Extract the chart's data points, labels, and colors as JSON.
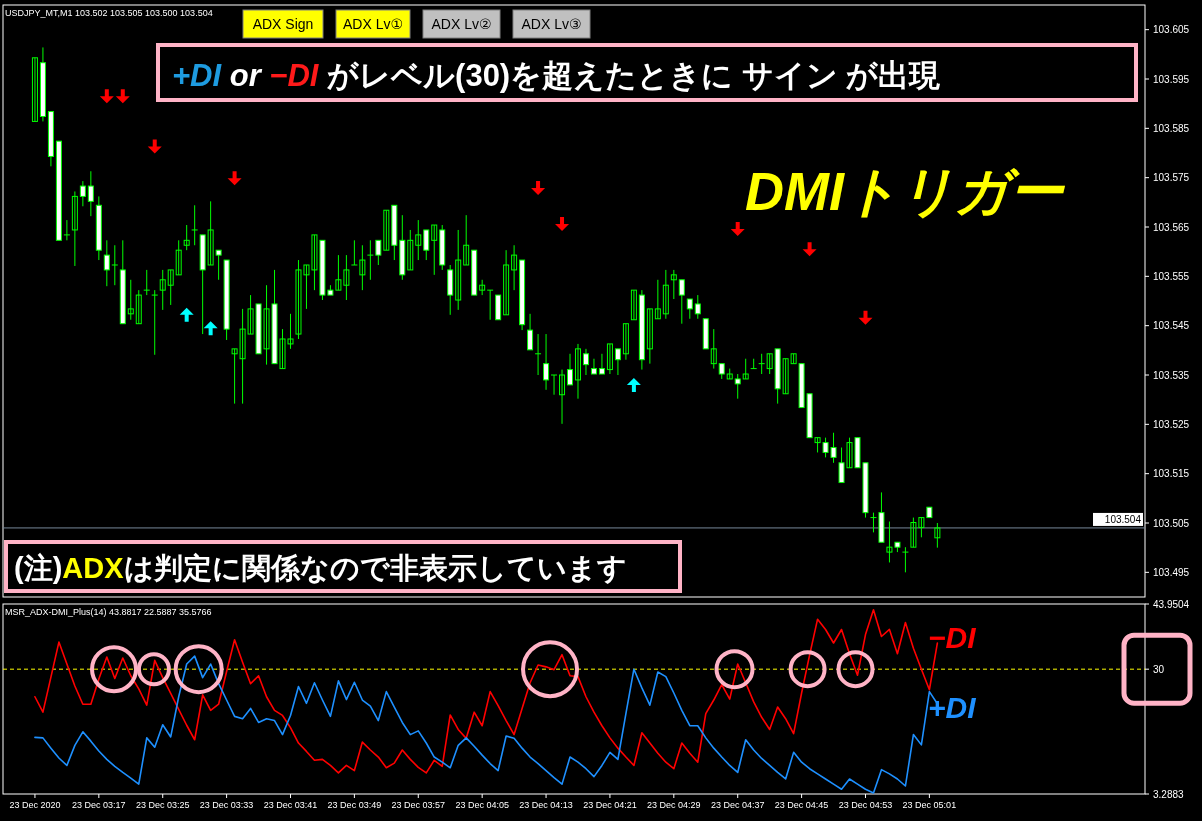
{
  "chart_data": [
    {
      "type": "candlestick",
      "title": "DMIトリガー",
      "subtitle": "USDJPY_MT,M1 103.502 103.505 103.500 103.504",
      "color": "#00ff00",
      "annotations": [
        "ADX Sign",
        "ADX Lv①",
        "ADX Lv②",
        "ADX Lv③",
        "+DI",
        "or",
        "−DI",
        "がレベル(30)を超えたときに サイン が出現",
        "(注)",
        "ADX",
        "は判定に関係なので非表示しています"
      ],
      "xlim": [
        "2020-12-23T03:05",
        "2020-12-23T05:28"
      ],
      "ylim": [
        103.49,
        103.61
      ],
      "yticks": [
        103.495,
        103.505,
        103.515,
        103.525,
        103.535,
        103.545,
        103.555,
        103.565,
        103.575,
        103.585,
        103.595,
        103.605
      ],
      "tick_labels": "y",
      "ref_lines": [
        {
          "axis": "y",
          "value": 103.504,
          "label": "103.504",
          "color": "#778899"
        }
      ],
      "x": [
        "2020-12-23T03:09",
        "2020-12-23T03:10",
        "2020-12-23T03:11",
        "2020-12-23T03:12",
        "2020-12-23T03:13",
        "2020-12-23T03:14",
        "2020-12-23T03:15",
        "2020-12-23T03:16",
        "2020-12-23T03:17",
        "2020-12-23T03:18",
        "2020-12-23T03:19",
        "2020-12-23T03:20",
        "2020-12-23T03:21",
        "2020-12-23T03:22",
        "2020-12-23T03:23",
        "2020-12-23T03:24",
        "2020-12-23T03:25",
        "2020-12-23T03:26",
        "2020-12-23T03:27",
        "2020-12-23T03:28",
        "2020-12-23T03:29",
        "2020-12-23T03:30",
        "2020-12-23T03:31",
        "2020-12-23T03:32",
        "2020-12-23T03:33",
        "2020-12-23T03:34",
        "2020-12-23T03:35",
        "2020-12-23T03:36",
        "2020-12-23T03:37",
        "2020-12-23T03:38",
        "2020-12-23T03:39",
        "2020-12-23T03:40",
        "2020-12-23T03:41",
        "2020-12-23T03:42",
        "2020-12-23T03:43",
        "2020-12-23T03:44",
        "2020-12-23T03:45",
        "2020-12-23T03:46",
        "2020-12-23T03:47",
        "2020-12-23T03:48",
        "2020-12-23T03:49",
        "2020-12-23T03:50",
        "2020-12-23T03:51",
        "2020-12-23T03:52",
        "2020-12-23T03:53",
        "2020-12-23T03:54",
        "2020-12-23T03:55",
        "2020-12-23T03:56",
        "2020-12-23T03:57",
        "2020-12-23T03:58",
        "2020-12-23T03:59",
        "2020-12-23T04:00",
        "2020-12-23T04:01",
        "2020-12-23T04:02",
        "2020-12-23T04:03",
        "2020-12-23T04:04",
        "2020-12-23T04:05",
        "2020-12-23T04:06",
        "2020-12-23T04:07",
        "2020-12-23T04:08",
        "2020-12-23T04:09",
        "2020-12-23T04:10",
        "2020-12-23T04:11",
        "2020-12-23T04:12",
        "2020-12-23T04:13",
        "2020-12-23T04:14",
        "2020-12-23T04:15",
        "2020-12-23T04:16",
        "2020-12-23T04:17",
        "2020-12-23T04:18",
        "2020-12-23T04:19",
        "2020-12-23T04:20",
        "2020-12-23T04:21",
        "2020-12-23T04:22",
        "2020-12-23T04:23",
        "2020-12-23T04:24",
        "2020-12-23T04:25",
        "2020-12-23T04:26",
        "2020-12-23T04:27",
        "2020-12-23T04:28",
        "2020-12-23T04:29",
        "2020-12-23T04:30",
        "2020-12-23T04:31",
        "2020-12-23T04:32",
        "2020-12-23T04:33",
        "2020-12-23T04:34",
        "2020-12-23T04:35",
        "2020-12-23T04:36",
        "2020-12-23T04:37",
        "2020-12-23T04:38",
        "2020-12-23T04:39",
        "2020-12-23T04:40",
        "2020-12-23T04:41",
        "2020-12-23T04:42",
        "2020-12-23T04:43",
        "2020-12-23T04:44",
        "2020-12-23T04:45",
        "2020-12-23T04:46",
        "2020-12-23T04:47",
        "2020-12-23T04:48",
        "2020-12-23T04:49",
        "2020-12-23T04:50",
        "2020-12-23T04:51",
        "2020-12-23T04:52",
        "2020-12-23T04:53",
        "2020-12-23T04:54",
        "2020-12-23T04:55",
        "2020-12-23T04:56",
        "2020-12-23T04:57",
        "2020-12-23T04:58",
        "2020-12-23T04:59",
        "2020-12-23T05:00",
        "2020-12-23T05:01",
        "2020-12-23T05:02"
      ],
      "ohlc": [
        [
          103.5864,
          103.5993,
          103.5864,
          103.5993
        ],
        [
          103.5983,
          103.6014,
          103.5864,
          103.5874
        ],
        [
          103.5884,
          103.5884,
          103.5773,
          103.5793
        ],
        [
          103.5824,
          103.5824,
          103.5623,
          103.5623
        ],
        [
          103.5634,
          103.5664,
          103.5623,
          103.5634
        ],
        [
          103.5644,
          103.5722,
          103.5571,
          103.5712
        ],
        [
          103.5733,
          103.5743,
          103.5692,
          103.5712
        ],
        [
          103.5733,
          103.5763,
          103.5672,
          103.5702
        ],
        [
          103.5694,
          103.5712,
          103.5583,
          103.5603
        ],
        [
          103.5593,
          103.5623,
          103.553,
          103.5563
        ],
        [
          103.5573,
          103.5613,
          103.5532,
          103.5573
        ],
        [
          103.5563,
          103.5623,
          103.5454,
          103.5454
        ],
        [
          103.5474,
          103.5543,
          103.5462,
          103.5484
        ],
        [
          103.5454,
          103.5522,
          103.5454,
          103.5512
        ],
        [
          103.5522,
          103.5563,
          103.5512,
          103.5522
        ],
        [
          103.5512,
          103.5522,
          103.5391,
          103.5512
        ],
        [
          103.5522,
          103.5563,
          103.5482,
          103.5543
        ],
        [
          103.5532,
          103.5563,
          103.5492,
          103.5563
        ],
        [
          103.5553,
          103.5623,
          103.5553,
          103.5603
        ],
        [
          103.5613,
          103.5654,
          103.5603,
          103.5623
        ],
        [
          103.5644,
          103.5694,
          103.5613,
          103.5644
        ],
        [
          103.5634,
          103.5634,
          103.5433,
          103.5563
        ],
        [
          103.5573,
          103.5702,
          103.5573,
          103.5644
        ],
        [
          103.5603,
          103.5603,
          103.5543,
          103.5593
        ],
        [
          103.5583,
          103.5583,
          103.5421,
          103.5443
        ],
        [
          103.5393,
          103.5403,
          103.5292,
          103.5403
        ],
        [
          103.5383,
          103.5484,
          103.5292,
          103.5443
        ],
        [
          103.5433,
          103.5512,
          103.5433,
          103.5484
        ],
        [
          103.5494,
          103.5494,
          103.5393,
          103.5393
        ],
        [
          103.5403,
          103.5532,
          103.5371,
          103.5484
        ],
        [
          103.5494,
          103.5563,
          103.5373,
          103.5373
        ],
        [
          103.5363,
          103.5443,
          103.5363,
          103.5423
        ],
        [
          103.5413,
          103.5474,
          103.5403,
          103.5423
        ],
        [
          103.5433,
          103.5583,
          103.5423,
          103.5563
        ],
        [
          103.5553,
          103.5573,
          103.5484,
          103.5573
        ],
        [
          103.5563,
          103.5634,
          103.5522,
          103.5634
        ],
        [
          103.5623,
          103.5623,
          103.5502,
          103.5512
        ],
        [
          103.5522,
          103.5532,
          103.5512,
          103.5512
        ],
        [
          103.5522,
          103.5593,
          103.5522,
          103.5543
        ],
        [
          103.5532,
          103.5593,
          103.5502,
          103.5563
        ],
        [
          103.5573,
          103.5623,
          103.5573,
          103.5573
        ],
        [
          103.5553,
          103.5613,
          103.5522,
          103.5583
        ],
        [
          103.5593,
          103.5623,
          103.5543,
          103.5593
        ],
        [
          103.5623,
          103.5623,
          103.5573,
          103.5593
        ],
        [
          103.5603,
          103.5684,
          103.5603,
          103.5684
        ],
        [
          103.5694,
          103.5694,
          103.5583,
          103.5613
        ],
        [
          103.5623,
          103.5674,
          103.5543,
          103.5553
        ],
        [
          103.5563,
          103.5644,
          103.5563,
          103.5623
        ],
        [
          103.5613,
          103.5664,
          103.5583,
          103.5634
        ],
        [
          103.5644,
          103.5644,
          103.5583,
          103.5603
        ],
        [
          103.5623,
          103.5654,
          103.5553,
          103.5654
        ],
        [
          103.5644,
          103.5654,
          103.5563,
          103.5573
        ],
        [
          103.5563,
          103.5573,
          103.5472,
          103.5512
        ],
        [
          103.5502,
          103.5644,
          103.5482,
          103.5583
        ],
        [
          103.5573,
          103.5674,
          103.5573,
          103.5613
        ],
        [
          103.5603,
          103.5603,
          103.5512,
          103.5512
        ],
        [
          103.5522,
          103.5543,
          103.5512,
          103.5532
        ],
        [
          103.5522,
          103.5522,
          103.5462,
          103.5522
        ],
        [
          103.5512,
          103.5512,
          103.5462,
          103.5462
        ],
        [
          103.5472,
          103.5603,
          103.5472,
          103.5573
        ],
        [
          103.5563,
          103.5613,
          103.5522,
          103.5593
        ],
        [
          103.5583,
          103.5583,
          103.5441,
          103.5452
        ],
        [
          103.5441,
          103.5474,
          103.5401,
          103.5401
        ],
        [
          103.5393,
          103.5433,
          103.535,
          103.5393
        ],
        [
          103.5373,
          103.5433,
          103.532,
          103.534
        ],
        [
          103.535,
          103.535,
          103.531,
          103.535
        ],
        [
          103.531,
          103.5361,
          103.5251,
          103.535
        ],
        [
          103.5361,
          103.5393,
          103.533,
          103.533
        ],
        [
          103.534,
          103.5413,
          103.5302,
          103.5403
        ],
        [
          103.5393,
          103.5403,
          103.535,
          103.5371
        ],
        [
          103.5363,
          103.5383,
          103.5352,
          103.5352
        ],
        [
          103.5363,
          103.5393,
          103.5352,
          103.5352
        ],
        [
          103.5361,
          103.5413,
          103.5352,
          103.5413
        ],
        [
          103.5403,
          103.5403,
          103.535,
          103.5381
        ],
        [
          103.5393,
          103.5454,
          103.5381,
          103.5454
        ],
        [
          103.5462,
          103.5522,
          103.5462,
          103.5522
        ],
        [
          103.5512,
          103.5522,
          103.5361,
          103.5381
        ],
        [
          103.5403,
          103.5484,
          103.5373,
          103.5484
        ],
        [
          103.5464,
          103.5543,
          103.5464,
          103.5484
        ],
        [
          103.5474,
          103.5563,
          103.5464,
          103.5532
        ],
        [
          103.5543,
          103.5563,
          103.5504,
          103.5553
        ],
        [
          103.5543,
          103.5543,
          103.5454,
          103.5512
        ],
        [
          103.5504,
          103.5504,
          103.5464,
          103.5484
        ],
        [
          103.5494,
          103.5512,
          103.5464,
          103.5474
        ],
        [
          103.5464,
          103.5464,
          103.5403,
          103.5403
        ],
        [
          103.5373,
          103.5443,
          103.5363,
          103.5403
        ],
        [
          103.5373,
          103.5373,
          103.5342,
          103.5352
        ],
        [
          103.5342,
          103.5363,
          103.5342,
          103.5352
        ],
        [
          103.5342,
          103.5352,
          103.5302,
          103.5332
        ],
        [
          103.5342,
          103.5383,
          103.5342,
          103.5352
        ],
        [
          103.5363,
          103.5383,
          103.5363,
          103.5363
        ],
        [
          103.5373,
          103.5393,
          103.5352,
          103.5373
        ],
        [
          103.5363,
          103.5393,
          103.5352,
          103.5393
        ],
        [
          103.5403,
          103.5403,
          103.5292,
          103.5322
        ],
        [
          103.5312,
          103.5383,
          103.5312,
          103.5383
        ],
        [
          103.5373,
          103.5393,
          103.5373,
          103.5393
        ],
        [
          103.5373,
          103.5373,
          103.5284,
          103.5284
        ],
        [
          103.5312,
          103.5312,
          103.5223,
          103.5223
        ],
        [
          103.5213,
          103.5223,
          103.5193,
          103.5223
        ],
        [
          103.5213,
          103.5223,
          103.5183,
          103.5193
        ],
        [
          103.5203,
          103.5233,
          103.5172,
          103.5183
        ],
        [
          103.5172,
          103.5203,
          103.5132,
          103.5132
        ],
        [
          103.5162,
          103.5223,
          103.5162,
          103.5213
        ],
        [
          103.5223,
          103.5223,
          103.5162,
          103.5162
        ],
        [
          103.5172,
          103.5172,
          103.5061,
          103.5071
        ],
        [
          103.5061,
          103.5071,
          103.5031,
          103.5061
        ],
        [
          103.5071,
          103.5112,
          103.5011,
          103.5011
        ],
        [
          103.4991,
          103.5053,
          103.497,
          103.5001
        ],
        [
          103.5011,
          103.5011,
          103.4991,
          103.5001
        ],
        [
          103.4991,
          103.5001,
          103.495,
          103.4991
        ],
        [
          103.5001,
          103.5061,
          103.5001,
          103.5051
        ],
        [
          103.5041,
          103.5061,
          103.5021,
          103.5061
        ],
        [
          103.5082,
          103.5082,
          103.5061,
          103.5061
        ],
        [
          103.502,
          103.505,
          103.5,
          103.504
        ]
      ],
      "series": [
        {
          "type": "scatter",
          "color": "#ff0000",
          "x": [
            "2020-12-23T03:18",
            "2020-12-23T03:20",
            "2020-12-23T03:24",
            "2020-12-23T03:34",
            "2020-12-23T04:12",
            "2020-12-23T04:15",
            "2020-12-23T04:37",
            "2020-12-23T04:46",
            "2020-12-23T04:53"
          ],
          "values": [
            103.5913,
            103.5913,
            103.5811,
            103.5747,
            103.5727,
            103.5654,
            103.5644,
            103.5603,
            103.5464
          ]
        },
        {
          "type": "scatter",
          "color": "#00ffff",
          "x": [
            "2020-12-23T03:28",
            "2020-12-23T03:31",
            "2020-12-23T04:24"
          ],
          "values": [
            103.5474,
            103.5447,
            103.5332
          ]
        }
      ]
    },
    {
      "type": "line",
      "title": "MSR_ADX-DMI_Plus(14) 43.8817 22.5887 35.5766",
      "xlim": [
        "2020-12-23T03:05",
        "2020-12-23T05:28"
      ],
      "ylim": [
        3.2883,
        43.9504
      ],
      "yticks": [
        3.2883,
        30,
        43.9504
      ],
      "xticks": [
        {
          "value": "2020-12-23T03:09",
          "label": "23 Dec 2020"
        },
        {
          "value": "2020-12-23T03:17",
          "label": "23 Dec 03:17"
        },
        {
          "value": "2020-12-23T03:25",
          "label": "23 Dec 03:25"
        },
        {
          "value": "2020-12-23T03:33",
          "label": "23 Dec 03:33"
        },
        {
          "value": "2020-12-23T03:41",
          "label": "23 Dec 03:41"
        },
        {
          "value": "2020-12-23T03:49",
          "label": "23 Dec 03:49"
        },
        {
          "value": "2020-12-23T03:57",
          "label": "23 Dec 03:57"
        },
        {
          "value": "2020-12-23T04:05",
          "label": "23 Dec 04:05"
        },
        {
          "value": "2020-12-23T04:13",
          "label": "23 Dec 04:13"
        },
        {
          "value": "2020-12-23T04:21",
          "label": "23 Dec 04:21"
        },
        {
          "value": "2020-12-23T04:29",
          "label": "23 Dec 04:29"
        },
        {
          "value": "2020-12-23T04:37",
          "label": "23 Dec 04:37"
        },
        {
          "value": "2020-12-23T04:45",
          "label": "23 Dec 04:45"
        },
        {
          "value": "2020-12-23T04:53",
          "label": "23 Dec 04:53"
        },
        {
          "value": "2020-12-23T05:01",
          "label": "23 Dec 05:01"
        }
      ],
      "ref_lines": [
        {
          "axis": "y",
          "value": 30,
          "color": "#ffff00",
          "line_style": "dashed"
        }
      ],
      "x": [
        "2020-12-23T03:09",
        "2020-12-23T03:10",
        "2020-12-23T03:11",
        "2020-12-23T03:12",
        "2020-12-23T03:13",
        "2020-12-23T03:14",
        "2020-12-23T03:15",
        "2020-12-23T03:16",
        "2020-12-23T03:17",
        "2020-12-23T03:18",
        "2020-12-23T03:19",
        "2020-12-23T03:20",
        "2020-12-23T03:21",
        "2020-12-23T03:22",
        "2020-12-23T03:23",
        "2020-12-23T03:24",
        "2020-12-23T03:25",
        "2020-12-23T03:26",
        "2020-12-23T03:27",
        "2020-12-23T03:28",
        "2020-12-23T03:29",
        "2020-12-23T03:30",
        "2020-12-23T03:31",
        "2020-12-23T03:32",
        "2020-12-23T03:33",
        "2020-12-23T03:34",
        "2020-12-23T03:35",
        "2020-12-23T03:36",
        "2020-12-23T03:37",
        "2020-12-23T03:38",
        "2020-12-23T03:39",
        "2020-12-23T03:40",
        "2020-12-23T03:41",
        "2020-12-23T03:42",
        "2020-12-23T03:43",
        "2020-12-23T03:44",
        "2020-12-23T03:45",
        "2020-12-23T03:46",
        "2020-12-23T03:47",
        "2020-12-23T03:48",
        "2020-12-23T03:49",
        "2020-12-23T03:50",
        "2020-12-23T03:51",
        "2020-12-23T03:52",
        "2020-12-23T03:53",
        "2020-12-23T03:54",
        "2020-12-23T03:55",
        "2020-12-23T03:56",
        "2020-12-23T03:57",
        "2020-12-23T03:58",
        "2020-12-23T03:59",
        "2020-12-23T04:00",
        "2020-12-23T04:01",
        "2020-12-23T04:02",
        "2020-12-23T04:03",
        "2020-12-23T04:04",
        "2020-12-23T04:05",
        "2020-12-23T04:06",
        "2020-12-23T04:07",
        "2020-12-23T04:08",
        "2020-12-23T04:09",
        "2020-12-23T04:10",
        "2020-12-23T04:11",
        "2020-12-23T04:12",
        "2020-12-23T04:13",
        "2020-12-23T04:14",
        "2020-12-23T04:15",
        "2020-12-23T04:16",
        "2020-12-23T04:17",
        "2020-12-23T04:18",
        "2020-12-23T04:19",
        "2020-12-23T04:20",
        "2020-12-23T04:21",
        "2020-12-23T04:22",
        "2020-12-23T04:23",
        "2020-12-23T04:24",
        "2020-12-23T04:25",
        "2020-12-23T04:26",
        "2020-12-23T04:27",
        "2020-12-23T04:28",
        "2020-12-23T04:29",
        "2020-12-23T04:30",
        "2020-12-23T04:31",
        "2020-12-23T04:32",
        "2020-12-23T04:33",
        "2020-12-23T04:34",
        "2020-12-23T04:35",
        "2020-12-23T04:36",
        "2020-12-23T04:37",
        "2020-12-23T04:38",
        "2020-12-23T04:39",
        "2020-12-23T04:40",
        "2020-12-23T04:41",
        "2020-12-23T04:42",
        "2020-12-23T04:43",
        "2020-12-23T04:44",
        "2020-12-23T04:45",
        "2020-12-23T04:46",
        "2020-12-23T04:47",
        "2020-12-23T04:48",
        "2020-12-23T04:49",
        "2020-12-23T04:50",
        "2020-12-23T04:51",
        "2020-12-23T04:52",
        "2020-12-23T04:53",
        "2020-12-23T04:54",
        "2020-12-23T04:55",
        "2020-12-23T04:56",
        "2020-12-23T04:57",
        "2020-12-23T04:58",
        "2020-12-23T04:59",
        "2020-12-23T05:00",
        "2020-12-23T05:01",
        "2020-12-23T05:02"
      ],
      "series": [
        {
          "name": "−DI",
          "color": "#ff0000",
          "values": [
            24.1,
            20.8,
            28.3,
            35.8,
            31.1,
            26.4,
            22.5,
            22.5,
            27.9,
            32.6,
            28.0,
            32.4,
            28.6,
            25.8,
            22.3,
            31.9,
            28.2,
            24.8,
            21.4,
            18.0,
            14.9,
            24.5,
            21.2,
            22.5,
            29.5,
            36.3,
            31.5,
            26.9,
            28.6,
            24.1,
            21.2,
            20.1,
            17.5,
            14.2,
            12.4,
            10.5,
            10.7,
            9.4,
            7.8,
            9.4,
            8.3,
            14.4,
            12.7,
            11.2,
            8.9,
            9.9,
            12.7,
            10.7,
            9.0,
            7.8,
            10.5,
            9.2,
            20.2,
            17.1,
            15.2,
            20.8,
            17.9,
            25.2,
            22.2,
            19.0,
            16.0,
            21.6,
            27.1,
            30.9,
            30.5,
            29.9,
            33.1,
            28.6,
            28.4,
            24.1,
            20.8,
            17.9,
            15.3,
            13.1,
            11.2,
            9.4,
            16.4,
            14.2,
            12.0,
            10.1,
            8.7,
            14.2,
            12.0,
            10.1,
            20.5,
            23.4,
            26.7,
            23.6,
            31.1,
            27.1,
            23.0,
            19.7,
            17.1,
            21.9,
            19.4,
            16.2,
            24.9,
            33.0,
            40.7,
            38.5,
            35.6,
            38.5,
            33.3,
            28.7,
            37.4,
            42.7,
            37.0,
            38.5,
            33.3,
            40.0,
            34.5,
            30.0,
            25.6,
            35.6
          ]
        },
        {
          "name": "+DI",
          "color": "#1e90ff",
          "values": [
            15.4,
            15.3,
            13.1,
            11.0,
            9.4,
            13.7,
            16.6,
            14.6,
            12.5,
            10.7,
            9.2,
            7.9,
            6.7,
            5.4,
            15.3,
            13.3,
            18.1,
            15.5,
            24.1,
            31.1,
            32.8,
            28.2,
            31.1,
            26.9,
            23.4,
            19.9,
            19.4,
            21.6,
            18.6,
            19.4,
            19.0,
            16.0,
            20.1,
            26.3,
            22.7,
            27.1,
            23.4,
            19.9,
            27.5,
            23.5,
            27.2,
            23.4,
            22.1,
            19.0,
            25.2,
            21.9,
            18.6,
            16.0,
            16.8,
            14.2,
            11.2,
            10.1,
            8.9,
            13.7,
            15.3,
            13.5,
            11.6,
            9.8,
            8.3,
            15.7,
            15.2,
            13.1,
            11.2,
            9.8,
            8.3,
            6.8,
            5.4,
            11.2,
            10.1,
            8.7,
            7.0,
            9.4,
            12.2,
            10.7,
            20.5,
            30.0,
            26.0,
            22.3,
            29.4,
            28.4,
            24.9,
            21.2,
            17.9,
            17.9,
            15.3,
            13.1,
            11.2,
            9.4,
            7.9,
            14.9,
            12.7,
            10.9,
            9.4,
            7.9,
            6.5,
            12.2,
            10.1,
            8.7,
            7.6,
            6.5,
            5.4,
            4.3,
            6.5,
            5.4,
            4.3,
            3.5,
            8.5,
            7.6,
            6.5,
            5.0,
            16.0,
            13.8,
            25.2,
            22.6
          ]
        }
      ]
    }
  ]
}
